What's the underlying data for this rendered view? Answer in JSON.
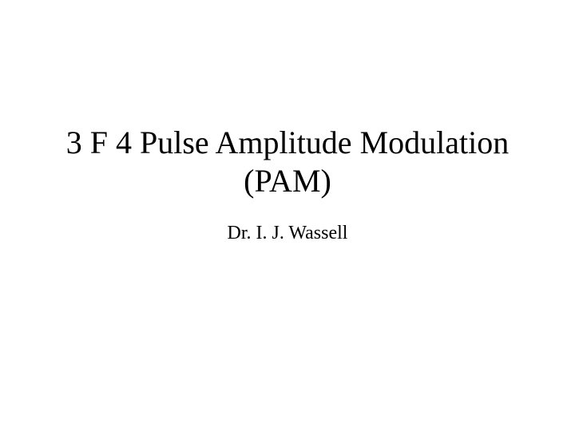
{
  "slide": {
    "title_line1": "3 F 4 Pulse Amplitude Modulation",
    "title_line2": "(PAM)",
    "author": "Dr. I. J. Wassell",
    "background_color": "#ffffff",
    "text_color": "#000000",
    "title_fontsize": 40,
    "author_fontsize": 24,
    "font_family": "Times New Roman"
  }
}
